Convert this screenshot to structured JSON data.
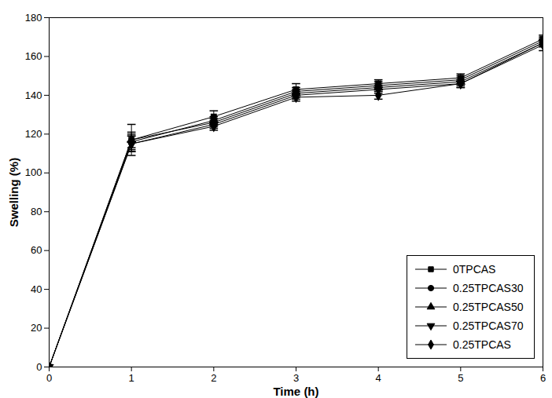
{
  "chart_data": {
    "type": "line",
    "x_label": "Time (h)",
    "y_label": "Swelling (%)",
    "x": [
      0,
      1,
      2,
      3,
      4,
      5,
      6
    ],
    "xlim": [
      0,
      6
    ],
    "xticks": [
      0,
      1,
      2,
      3,
      4,
      5,
      6
    ],
    "ylim": [
      0,
      180
    ],
    "yticks": [
      0,
      20,
      40,
      60,
      80,
      100,
      120,
      140,
      160,
      180
    ],
    "legend": "bottom-right",
    "series": [
      {
        "name": "0TPCAS",
        "color": "#000000",
        "marker": "square",
        "values": [
          0,
          117,
          129,
          143,
          146,
          149,
          169
        ],
        "errors": [
          0,
          8,
          3,
          3,
          2,
          2,
          2
        ]
      },
      {
        "name": "0.25TPCAS30",
        "color": "#000000",
        "marker": "circle",
        "values": [
          0,
          116,
          127,
          142,
          145,
          148,
          168
        ],
        "errors": [
          0,
          4,
          2,
          2,
          2,
          2,
          2
        ]
      },
      {
        "name": "0.25TPCAS50",
        "color": "#000000",
        "marker": "triangle",
        "values": [
          0,
          117,
          126,
          141,
          144,
          147,
          167
        ],
        "errors": [
          0,
          4,
          2,
          2,
          2,
          2,
          2
        ]
      },
      {
        "name": "0.25TPCAS70",
        "color": "#000000",
        "marker": "triangle-down",
        "values": [
          0,
          115,
          125,
          140,
          143,
          146,
          167
        ],
        "errors": [
          0,
          4,
          2,
          2,
          2,
          2,
          2
        ]
      },
      {
        "name": "0.25TPCAS",
        "color": "#000000",
        "marker": "diamond",
        "values": [
          0,
          115,
          124,
          139,
          140,
          146,
          166
        ],
        "errors": [
          0,
          4,
          2,
          2,
          2,
          2,
          3
        ]
      }
    ]
  }
}
